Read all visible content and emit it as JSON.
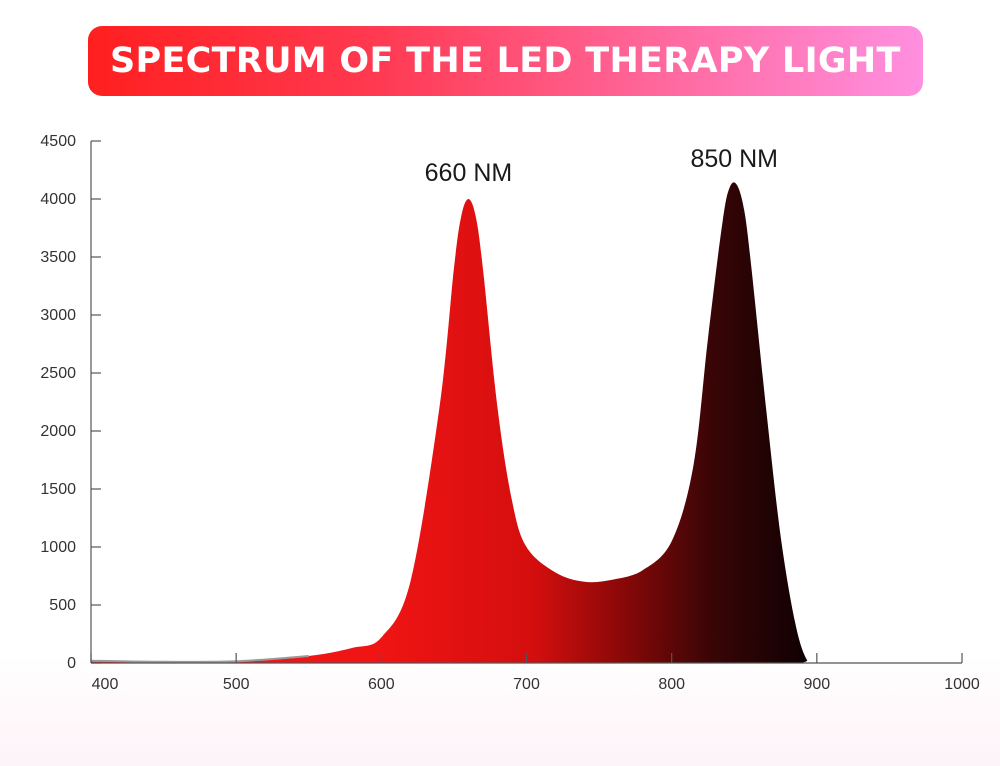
{
  "title": "SPECTRUM OF THE LED THERAPY LIGHT",
  "colors": {
    "banner_start": "#ff1f1f",
    "banner_end": "#ff8fe0",
    "fill_red": "#e81212",
    "fill_dark": "#0d0203"
  },
  "chart_data": {
    "type": "area",
    "xlim": [
      400,
      1000
    ],
    "ylim": [
      0,
      4500
    ],
    "x_ticks": [
      "400",
      "500",
      "600",
      "700",
      "800",
      "900",
      "1000"
    ],
    "y_ticks": [
      "0",
      "500",
      "1000",
      "1500",
      "2000",
      "2500",
      "3000",
      "3500",
      "4000",
      "4500"
    ],
    "x": [
      400,
      450,
      500,
      550,
      580,
      600,
      620,
      640,
      650,
      655,
      660,
      665,
      670,
      680,
      690,
      700,
      720,
      740,
      760,
      780,
      800,
      815,
      825,
      835,
      840,
      845,
      850,
      855,
      865,
      875,
      885,
      893,
      900,
      1000
    ],
    "y": [
      20,
      10,
      15,
      60,
      130,
      220,
      700,
      2200,
      3400,
      3850,
      4000,
      3850,
      3400,
      2200,
      1400,
      1000,
      780,
      700,
      720,
      800,
      1050,
      1700,
      2800,
      3800,
      4100,
      4120,
      3900,
      3400,
      2200,
      1100,
      350,
      30,
      0,
      0
    ],
    "annotations": [
      {
        "text": "660 NM",
        "x": 660,
        "y": 4000
      },
      {
        "text": "850 NM",
        "x": 850,
        "y": 4120
      }
    ]
  }
}
